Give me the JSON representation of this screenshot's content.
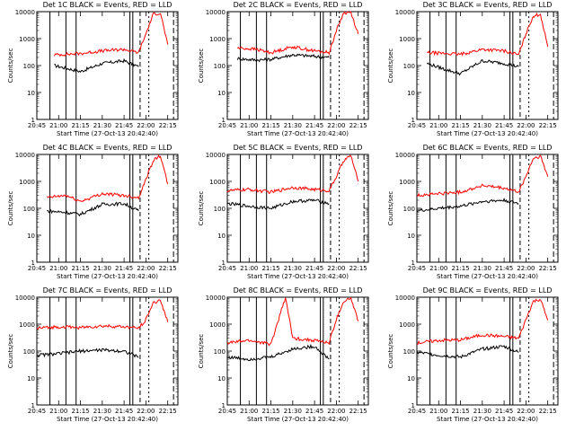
{
  "chart_data": [
    {
      "type": "line",
      "title": "Det 1C BLACK = Events, RED = LLD",
      "xlabel": "Start Time (27-Oct-13 20:42:40)",
      "ylabel": "Counts/sec",
      "x_ticks": [
        "20:45",
        "21:00",
        "21:15",
        "21:30",
        "21:45",
        "22:00",
        "22:15"
      ],
      "y_ticks": [
        "1",
        "10",
        "100",
        "1000",
        "10000"
      ],
      "ylim": [
        1,
        10000
      ],
      "y_scale": "log",
      "series": [
        {
          "name": "Events",
          "color": "#000000",
          "x": [
            "20:57",
            "21:05",
            "21:15",
            "21:30",
            "21:45",
            "21:55"
          ],
          "y": [
            100,
            80,
            60,
            120,
            150,
            90
          ]
        },
        {
          "name": "LLD",
          "color": "#ff0000",
          "x": [
            "20:57",
            "21:15",
            "21:30",
            "21:45",
            "21:55",
            "22:00",
            "22:05",
            "22:10",
            "22:15"
          ],
          "y": [
            250,
            280,
            350,
            400,
            300,
            1500,
            8000,
            9000,
            600
          ]
        }
      ]
    },
    {
      "type": "line",
      "title": "Det 2C BLACK = Events, RED = LLD",
      "xlabel": "Start Time (27-Oct-13 20:42:40)",
      "ylabel": "Counts/sec",
      "x_ticks": [
        "20:45",
        "21:00",
        "21:15",
        "21:30",
        "21:45",
        "22:00",
        "22:15"
      ],
      "y_ticks": [
        "1",
        "10",
        "100",
        "1000",
        "10000"
      ],
      "ylim": [
        1,
        10000
      ],
      "y_scale": "log",
      "series": [
        {
          "name": "Events",
          "color": "#000000",
          "x": [
            "20:52",
            "21:05",
            "21:15",
            "21:30",
            "21:45",
            "21:55"
          ],
          "y": [
            180,
            160,
            170,
            250,
            220,
            200
          ]
        },
        {
          "name": "LLD",
          "color": "#ff0000",
          "x": [
            "20:52",
            "21:05",
            "21:15",
            "21:30",
            "21:45",
            "21:55",
            "22:00",
            "22:05",
            "22:10",
            "22:15"
          ],
          "y": [
            450,
            400,
            300,
            500,
            350,
            300,
            2000,
            9000,
            9500,
            1500
          ]
        }
      ]
    },
    {
      "type": "line",
      "title": "Det 3C BLACK = Events, RED = LLD",
      "xlabel": "Start Time (27-Oct-13 20:42:40)",
      "ylabel": "Counts/sec",
      "x_ticks": [
        "20:45",
        "21:00",
        "21:15",
        "21:30",
        "21:45",
        "22:00",
        "22:15"
      ],
      "y_ticks": [
        "1",
        "10",
        "100",
        "1000",
        "10000"
      ],
      "ylim": [
        1,
        10000
      ],
      "y_scale": "log",
      "series": [
        {
          "name": "Events",
          "color": "#000000",
          "x": [
            "20:52",
            "21:05",
            "21:15",
            "21:30",
            "21:45",
            "21:55"
          ],
          "y": [
            120,
            70,
            50,
            150,
            120,
            90
          ]
        },
        {
          "name": "LLD",
          "color": "#ff0000",
          "x": [
            "20:52",
            "21:05",
            "21:15",
            "21:30",
            "21:45",
            "21:55",
            "22:00",
            "22:05",
            "22:10",
            "22:15"
          ],
          "y": [
            300,
            280,
            260,
            400,
            350,
            250,
            1500,
            7000,
            8000,
            500
          ]
        }
      ]
    },
    {
      "type": "line",
      "title": "Det 4C BLACK = Events, RED = LLD",
      "xlabel": "Start Time (27-Oct-13 20:42:40)",
      "ylabel": "Counts/sec",
      "x_ticks": [
        "20:45",
        "21:00",
        "21:15",
        "21:30",
        "21:45",
        "22:00",
        "22:15"
      ],
      "y_ticks": [
        "1",
        "10",
        "100",
        "1000",
        "10000"
      ],
      "ylim": [
        1,
        10000
      ],
      "y_scale": "log",
      "series": [
        {
          "name": "Events",
          "color": "#000000",
          "x": [
            "20:52",
            "21:05",
            "21:15",
            "21:30",
            "21:45",
            "21:55"
          ],
          "y": [
            80,
            70,
            60,
            140,
            150,
            80
          ]
        },
        {
          "name": "LLD",
          "color": "#ff0000",
          "x": [
            "20:52",
            "21:05",
            "21:15",
            "21:30",
            "21:45",
            "21:55",
            "22:00",
            "22:05",
            "22:10",
            "22:15"
          ],
          "y": [
            250,
            300,
            180,
            350,
            300,
            250,
            1200,
            6000,
            9000,
            800
          ]
        }
      ]
    },
    {
      "type": "line",
      "title": "Det 5C BLACK = Events, RED = LLD",
      "xlabel": "Start Time (27-Oct-13 20:42:40)",
      "ylabel": "Counts/sec",
      "x_ticks": [
        "20:45",
        "21:00",
        "21:15",
        "21:30",
        "21:45",
        "22:00",
        "22:15"
      ],
      "y_ticks": [
        "1",
        "10",
        "100",
        "1000",
        "10000"
      ],
      "ylim": [
        1,
        10000
      ],
      "y_scale": "log",
      "series": [
        {
          "name": "Events",
          "color": "#000000",
          "x": [
            "20:45",
            "21:00",
            "21:15",
            "21:30",
            "21:45",
            "21:55"
          ],
          "y": [
            150,
            120,
            100,
            180,
            200,
            150
          ]
        },
        {
          "name": "LLD",
          "color": "#ff0000",
          "x": [
            "20:45",
            "21:00",
            "21:15",
            "21:30",
            "21:45",
            "21:55",
            "22:00",
            "22:05",
            "22:10",
            "22:15"
          ],
          "y": [
            450,
            500,
            400,
            600,
            500,
            450,
            1500,
            6000,
            9000,
            1000
          ]
        }
      ]
    },
    {
      "type": "line",
      "title": "Det 6C BLACK = Events, RED = LLD",
      "xlabel": "Start Time (27-Oct-13 20:42:40)",
      "ylabel": "Counts/sec",
      "x_ticks": [
        "20:45",
        "21:00",
        "21:15",
        "21:30",
        "21:45",
        "22:00",
        "22:15"
      ],
      "y_ticks": [
        "1",
        "10",
        "100",
        "1000",
        "10000"
      ],
      "ylim": [
        1,
        10000
      ],
      "y_scale": "log",
      "series": [
        {
          "name": "Events",
          "color": "#000000",
          "x": [
            "20:45",
            "21:00",
            "21:15",
            "21:30",
            "21:45",
            "21:55"
          ],
          "y": [
            80,
            100,
            120,
            180,
            200,
            150
          ]
        },
        {
          "name": "LLD",
          "color": "#ff0000",
          "x": [
            "20:45",
            "21:00",
            "21:15",
            "21:30",
            "21:45",
            "21:55",
            "22:00",
            "22:05",
            "22:10",
            "22:15"
          ],
          "y": [
            300,
            350,
            400,
            700,
            550,
            400,
            1500,
            7000,
            8500,
            1500
          ]
        }
      ]
    },
    {
      "type": "line",
      "title": "Det 7C BLACK = Events, RED = LLD",
      "xlabel": "Start Time (27-Oct-13 20:42:40)",
      "ylabel": "Counts/sec",
      "x_ticks": [
        "20:45",
        "21:00",
        "21:15",
        "21:30",
        "21:45",
        "22:00",
        "22:15"
      ],
      "y_ticks": [
        "1",
        "10",
        "100",
        "1000",
        "10000"
      ],
      "ylim": [
        1,
        10000
      ],
      "y_scale": "log",
      "series": [
        {
          "name": "Events",
          "color": "#000000",
          "x": [
            "20:45",
            "21:00",
            "21:15",
            "21:30",
            "21:45",
            "21:55"
          ],
          "y": [
            70,
            80,
            100,
            110,
            100,
            60
          ]
        },
        {
          "name": "LLD",
          "color": "#ff0000",
          "x": [
            "20:45",
            "21:00",
            "21:15",
            "21:30",
            "21:45",
            "21:55",
            "22:00",
            "22:05",
            "22:10",
            "22:15"
          ],
          "y": [
            700,
            800,
            750,
            850,
            800,
            700,
            1500,
            6000,
            8000,
            1200
          ]
        }
      ]
    },
    {
      "type": "line",
      "title": "Det 8C BLACK = Events, RED = LLD",
      "xlabel": "Start Time (27-Oct-13 20:42:40)",
      "ylabel": "Counts/sec",
      "x_ticks": [
        "20:45",
        "21:00",
        "21:15",
        "21:30",
        "21:45",
        "22:00",
        "22:15"
      ],
      "y_ticks": [
        "1",
        "10",
        "100",
        "1000",
        "10000"
      ],
      "ylim": [
        1,
        10000
      ],
      "y_scale": "log",
      "series": [
        {
          "name": "Events",
          "color": "#000000",
          "x": [
            "20:45",
            "21:00",
            "21:15",
            "21:30",
            "21:45",
            "21:55"
          ],
          "y": [
            60,
            50,
            60,
            120,
            150,
            50
          ]
        },
        {
          "name": "LLD",
          "color": "#ff0000",
          "x": [
            "20:45",
            "21:00",
            "21:15",
            "21:25",
            "21:30",
            "21:45",
            "21:55",
            "22:00",
            "22:05",
            "22:10",
            "22:15"
          ],
          "y": [
            200,
            250,
            180,
            10000,
            300,
            250,
            200,
            1500,
            7000,
            9000,
            1300
          ]
        }
      ]
    },
    {
      "type": "line",
      "title": "Det 9C BLACK = Events, RED = LLD",
      "xlabel": "Start Time (27-Oct-13 20:42:40)",
      "ylabel": "Counts/sec",
      "x_ticks": [
        "20:45",
        "21:00",
        "21:15",
        "21:30",
        "21:45",
        "22:00",
        "22:15"
      ],
      "y_ticks": [
        "1",
        "10",
        "100",
        "1000",
        "10000"
      ],
      "ylim": [
        1,
        10000
      ],
      "y_scale": "log",
      "series": [
        {
          "name": "Events",
          "color": "#000000",
          "x": [
            "20:45",
            "21:00",
            "21:15",
            "21:30",
            "21:45",
            "21:55"
          ],
          "y": [
            90,
            70,
            60,
            120,
            150,
            90
          ]
        },
        {
          "name": "LLD",
          "color": "#ff0000",
          "x": [
            "20:45",
            "21:00",
            "21:15",
            "21:30",
            "21:45",
            "21:55",
            "22:00",
            "22:05",
            "22:10",
            "22:15"
          ],
          "y": [
            200,
            250,
            260,
            400,
            350,
            300,
            1500,
            7000,
            8500,
            1400
          ]
        }
      ]
    }
  ]
}
